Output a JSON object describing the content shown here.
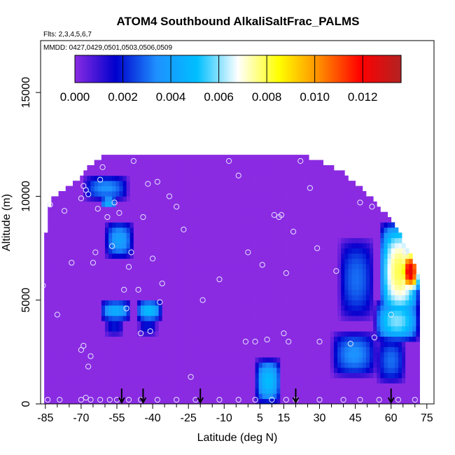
{
  "chart_data": {
    "type": "heatmap",
    "title": "ATOM4 Southbound AlkaliSaltFrac_PALMS",
    "subtitle_flights": "Flts: 2,3,4,5,6,7",
    "subtitle_dates": "MMDD: 0427,0429,0501,0503,0506,0509",
    "xlabel": "Latitude (deg N)",
    "ylabel": "Altitude (m)",
    "xlim": [
      -87,
      78
    ],
    "ylim": [
      0,
      17500
    ],
    "x_ticks": [
      -85,
      -70,
      -55,
      -40,
      -25,
      -10,
      5,
      15,
      30,
      45,
      60,
      75
    ],
    "x_minor_ticks": [
      -80,
      -75,
      -65,
      -60,
      -50,
      -45,
      -35,
      -30,
      -20,
      -15,
      -5,
      0,
      10,
      20,
      25,
      35,
      40,
      50,
      55,
      65,
      70
    ],
    "y_ticks": [
      0,
      5000,
      10000,
      15000
    ],
    "colorbar": {
      "min": 0,
      "max": 0.0136,
      "ticks": [
        0.0,
        0.002,
        0.004,
        0.006,
        0.008,
        0.01,
        0.012
      ],
      "tick_labels": [
        "0.000",
        "0.002",
        "0.004",
        "0.006",
        "0.008",
        "0.010",
        "0.012"
      ],
      "colors": [
        "#8a2be2",
        "#0000cd",
        "#1e90ff",
        "#00bfff",
        "#ffffff",
        "#ffff00",
        "#ff8c00",
        "#ff0000",
        "#b22222"
      ]
    },
    "background_value": 0.0,
    "envelope": [
      [
        -86,
        0,
        6000
      ],
      [
        -84,
        0,
        9300
      ],
      [
        -82,
        0,
        9800
      ],
      [
        -79,
        0,
        10000
      ],
      [
        -75,
        0,
        10400
      ],
      [
        -70,
        0,
        10800
      ],
      [
        -66,
        0,
        11400
      ],
      [
        -60,
        0,
        11900
      ],
      [
        -45,
        0,
        12000
      ],
      [
        -20,
        0,
        12000
      ],
      [
        0,
        0,
        12000
      ],
      [
        20,
        0,
        12000
      ],
      [
        30,
        0,
        11600
      ],
      [
        40,
        0,
        11000
      ],
      [
        48,
        0,
        10200
      ],
      [
        55,
        0,
        9400
      ],
      [
        60,
        0,
        8700
      ],
      [
        65,
        0,
        7800
      ],
      [
        68,
        0,
        7100
      ],
      [
        70,
        0,
        6500
      ],
      [
        72,
        0,
        5800
      ]
    ],
    "features": [
      {
        "x": [
          -69,
          -50
        ],
        "y": [
          9800,
          11000
        ],
        "peak": 0.0035
      },
      {
        "x": [
          -62,
          -55
        ],
        "y": [
          9400,
          10000
        ],
        "peak": 0.0045
      },
      {
        "x": [
          -60,
          -48
        ],
        "y": [
          7000,
          8800
        ],
        "peak": 0.004
      },
      {
        "x": [
          -62,
          -49
        ],
        "y": [
          4000,
          5000
        ],
        "peak": 0.0045
      },
      {
        "x": [
          -47,
          -36
        ],
        "y": [
          4000,
          5000
        ],
        "peak": 0.005
      },
      {
        "x": [
          -60,
          -52
        ],
        "y": [
          3300,
          4200
        ],
        "peak": 0.002
      },
      {
        "x": [
          -46,
          -38
        ],
        "y": [
          3300,
          4200
        ],
        "peak": 0.002
      },
      {
        "x": [
          -68,
          -67
        ],
        "y": [
          200,
          1500
        ],
        "peak": 0.002
      },
      {
        "x": [
          3,
          14
        ],
        "y": [
          0,
          2200
        ],
        "peak": 0.005
      },
      {
        "x": [
          35,
          54
        ],
        "y": [
          1300,
          3500
        ],
        "peak": 0.0035
      },
      {
        "x": [
          55,
          72
        ],
        "y": [
          4000,
          8800
        ],
        "peak": 0.008
      },
      {
        "x": [
          64,
          72
        ],
        "y": [
          5400,
          7400
        ],
        "peak": 0.0125
      },
      {
        "x": [
          53,
          72
        ],
        "y": [
          3000,
          5000
        ],
        "peak": 0.006
      },
      {
        "x": [
          54,
          66
        ],
        "y": [
          1000,
          3200
        ],
        "peak": 0.003
      },
      {
        "x": [
          38,
          53
        ],
        "y": [
          4000,
          8000
        ],
        "peak": 0.003
      }
    ],
    "observations": [
      [
        -86,
        5700
      ],
      [
        -83,
        9600
      ],
      [
        -80,
        4300
      ],
      [
        -77,
        9300
      ],
      [
        -74,
        6800
      ],
      [
        -70,
        9900
      ],
      [
        -69,
        10500
      ],
      [
        -68,
        10300
      ],
      [
        -67,
        10100
      ],
      [
        -70,
        2600
      ],
      [
        -69,
        2800
      ],
      [
        -67,
        1800
      ],
      [
        -66,
        2300
      ],
      [
        -65,
        6800
      ],
      [
        -64,
        7300
      ],
      [
        -63,
        9400
      ],
      [
        -62,
        10800
      ],
      [
        -61,
        11400
      ],
      [
        -59,
        9000
      ],
      [
        -57,
        7600
      ],
      [
        -56,
        9700
      ],
      [
        -54,
        9200
      ],
      [
        -52,
        5500
      ],
      [
        -51,
        4600
      ],
      [
        -50,
        6600
      ],
      [
        -49,
        7300
      ],
      [
        -48,
        11700
      ],
      [
        -46,
        5500
      ],
      [
        -45,
        3400
      ],
      [
        -44,
        9000
      ],
      [
        -42,
        10600
      ],
      [
        -41,
        3500
      ],
      [
        -40,
        7000
      ],
      [
        -38,
        10700
      ],
      [
        -37,
        4900
      ],
      [
        -36,
        5800
      ],
      [
        -33,
        10000
      ],
      [
        -30,
        9500
      ],
      [
        -27,
        8400
      ],
      [
        -24,
        1300
      ],
      [
        -19,
        5000
      ],
      [
        -12,
        6000
      ],
      [
        -8,
        11700
      ],
      [
        -4,
        11000
      ],
      [
        -1,
        3000
      ],
      [
        0,
        7300
      ],
      [
        3,
        3000
      ],
      [
        6,
        6700
      ],
      [
        8,
        3100
      ],
      [
        11,
        9100
      ],
      [
        13,
        9000
      ],
      [
        14,
        9100
      ],
      [
        15,
        3400
      ],
      [
        16,
        6300
      ],
      [
        17,
        3000
      ],
      [
        19,
        8300
      ],
      [
        22,
        11700
      ],
      [
        26,
        10400
      ],
      [
        29,
        7500
      ],
      [
        30,
        3000
      ],
      [
        37,
        6400
      ],
      [
        43,
        2900
      ],
      [
        47,
        9700
      ],
      [
        52,
        9500
      ],
      [
        53,
        3200
      ],
      [
        60,
        4300
      ],
      [
        66,
        7300
      ],
      [
        -84,
        200
      ],
      [
        -79,
        200
      ],
      [
        -70,
        200
      ],
      [
        -68,
        300
      ],
      [
        -66,
        200
      ],
      [
        -62,
        200
      ],
      [
        -58,
        200
      ],
      [
        -55,
        200
      ],
      [
        -50,
        200
      ],
      [
        -45,
        200
      ],
      [
        -38,
        200
      ],
      [
        -30,
        200
      ],
      [
        -22,
        200
      ],
      [
        -12,
        200
      ],
      [
        -4,
        200
      ],
      [
        3,
        200
      ],
      [
        10,
        200
      ],
      [
        16,
        200
      ],
      [
        20,
        200
      ],
      [
        30,
        200
      ],
      [
        40,
        200
      ],
      [
        47,
        200
      ],
      [
        55,
        200
      ],
      [
        63,
        200
      ],
      [
        70,
        200
      ]
    ],
    "arrows_x": [
      -53,
      -44,
      -20,
      20,
      60
    ]
  }
}
